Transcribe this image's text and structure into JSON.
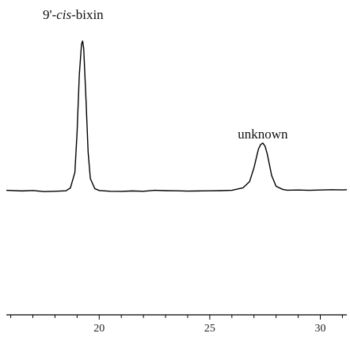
{
  "chart_data": {
    "type": "line",
    "title": "",
    "xlabel": "",
    "ylabel": "",
    "xlim": [
      15.8,
      31.2
    ],
    "ylim": [
      -0.3,
      1.0
    ],
    "x_ticks": [
      20,
      25,
      30
    ],
    "x_tick_labels": [
      "20",
      "25",
      "30"
    ],
    "grid": false,
    "legend": "none",
    "line_color": "#000000",
    "annotations": [
      {
        "id": "bixin",
        "prefix": "9'-",
        "italic": "cis",
        "suffix": "-bixin",
        "x": 19.25
      },
      {
        "id": "unknown",
        "text": "unknown",
        "x": 27.4
      }
    ],
    "peaks": [
      {
        "name": "9'-cis-bixin",
        "retention_time": 19.25,
        "height": 0.97
      },
      {
        "name": "unknown",
        "retention_time": 27.4,
        "height": 0.31
      }
    ],
    "series": [
      {
        "x": [
          15.8,
          16.5,
          17.0,
          17.5,
          18.0,
          18.5,
          18.7,
          18.9,
          19.0,
          19.1,
          19.2,
          19.25,
          19.3,
          19.4,
          19.5,
          19.6,
          19.8,
          20.0,
          20.5,
          21.0,
          21.5,
          22.0,
          22.5,
          23.0,
          23.5,
          24.0,
          24.5,
          25.0,
          25.5,
          26.0,
          26.5,
          26.8,
          27.0,
          27.2,
          27.3,
          27.4,
          27.5,
          27.6,
          27.8,
          28.0,
          28.3,
          28.5,
          29.0,
          29.5,
          30.0,
          30.5,
          31.0,
          31.2
        ],
        "y": [
          0.004,
          0.0,
          0.003,
          -0.004,
          -0.002,
          0.001,
          0.02,
          0.12,
          0.38,
          0.75,
          0.95,
          0.97,
          0.92,
          0.6,
          0.25,
          0.08,
          0.015,
          0.003,
          -0.002,
          -0.003,
          0.0,
          -0.002,
          0.004,
          0.002,
          0.001,
          -0.001,
          0.0,
          0.001,
          0.002,
          0.004,
          0.02,
          0.06,
          0.15,
          0.27,
          0.3,
          0.31,
          0.29,
          0.24,
          0.1,
          0.03,
          0.01,
          0.005,
          0.006,
          0.004,
          0.006,
          0.008,
          0.007,
          0.008
        ]
      }
    ]
  }
}
